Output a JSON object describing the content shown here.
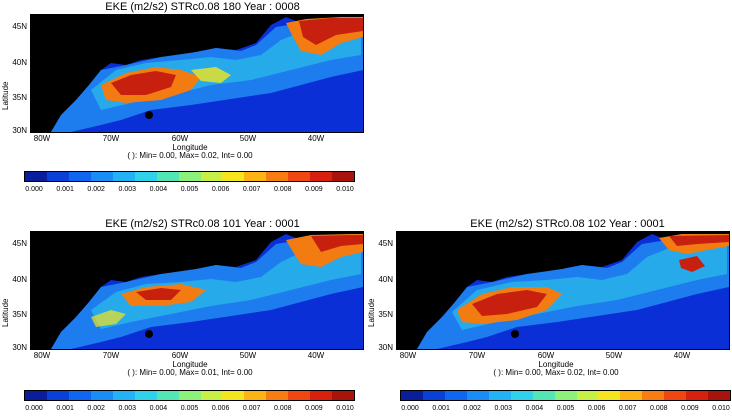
{
  "panels": [
    {
      "title": "EKE (m2/s2) STRc0.08 180 Year : 0008",
      "ylabel": "Latitude",
      "xlabel": "Longitude",
      "yticks": [
        "45N",
        "40N",
        "35N",
        "30N"
      ],
      "xticks": [
        "80W",
        "70W",
        "60W",
        "50W",
        "40W"
      ],
      "stats": "( ): Min= 0.00, Max= 0.02, Int= 0.00"
    },
    {
      "title": "EKE (m2/s2) STRc0.08 101 Year : 0001",
      "ylabel": "Latitude",
      "xlabel": "Longitude",
      "yticks": [
        "45N",
        "40N",
        "35N",
        "30N"
      ],
      "xticks": [
        "80W",
        "70W",
        "60W",
        "50W",
        "40W"
      ],
      "stats": "( ): Min= 0.00, Max= 0.01, Int= 0.00"
    },
    {
      "title": "EKE (m2/s2) STRc0.08 102 Year : 0001",
      "ylabel": "Latitude",
      "xlabel": "Longitude",
      "yticks": [
        "45N",
        "40N",
        "35N",
        "30N"
      ],
      "xticks": [
        "80W",
        "70W",
        "60W",
        "50W",
        "40W"
      ],
      "stats": "( ): Min= 0.00, Max= 0.02, Int= 0.00"
    }
  ],
  "colorbar": {
    "labels": [
      "0.000",
      "0.001",
      "0.002",
      "0.003",
      "0.004",
      "0.005",
      "0.006",
      "0.007",
      "0.008",
      "0.009",
      "0.010"
    ],
    "colors": [
      "#0a1e9c",
      "#0a3fd8",
      "#0f66f0",
      "#1a8cf5",
      "#22b2f5",
      "#2fd2e8",
      "#52e6b4",
      "#8cf07a",
      "#c7f046",
      "#f4e61e",
      "#fbb414",
      "#f77c12",
      "#ef4612",
      "#d8200e",
      "#a8140c"
    ]
  },
  "colors": {
    "land": "#000000",
    "ocean_low": "#0a2fd6",
    "high": "#c8200e"
  }
}
